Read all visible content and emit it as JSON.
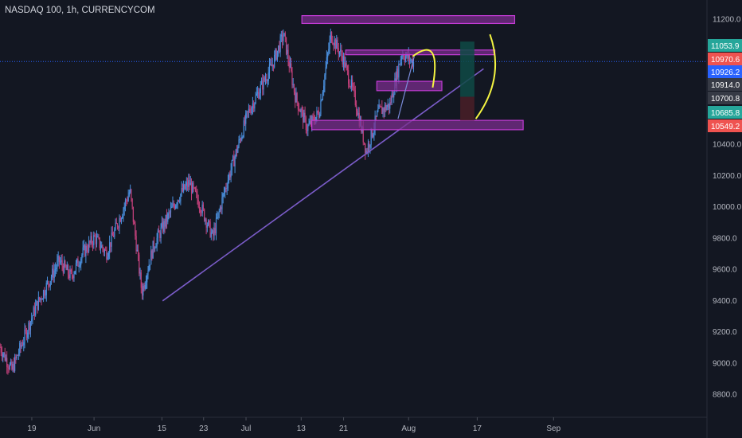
{
  "header": {
    "title": "NASDAQ 100, 1h, CURRENCYCOM"
  },
  "colors": {
    "background": "#131722",
    "up": "#4a8fdd",
    "down": "#c2407a",
    "zone_fill": "#7b2d8e",
    "zone_stroke": "#c23bd4",
    "trendline": "#7b5cc9",
    "arc": "#f5f542",
    "axis_text": "#b2b5be",
    "price_line": "#2962ff"
  },
  "chart_data": {
    "type": "candlestick",
    "title": "NASDAQ 100, 1h, CURRENCYCOM",
    "ylim": [
      8650,
      11320
    ],
    "y_ticks": [
      8800,
      9000,
      9200,
      9400,
      9600,
      9800,
      10000,
      10200,
      10400,
      11200
    ],
    "y_tick_labels": [
      "8800.0",
      "9000.0",
      "9200.0",
      "9400.0",
      "9600.0",
      "9800.0",
      "10000.0",
      "10200.0",
      "10400.0",
      "11200.0"
    ],
    "x_tick_labels": [
      "19",
      "Jun",
      "15",
      "23",
      "Jul",
      "13",
      "21",
      "Aug",
      "17",
      "Sep"
    ],
    "price_tags": [
      {
        "label": "11053.9",
        "color": "#26a69a"
      },
      {
        "label": "10970.6",
        "color": "#ef5350"
      },
      {
        "label": "10926.2",
        "color": "#2962ff"
      },
      {
        "label": "10914.0",
        "color": "#363a45"
      },
      {
        "label": "10700.8",
        "color": "#363a45"
      },
      {
        "label": "10685.8",
        "color": "#26a69a"
      },
      {
        "label": "10549.2",
        "color": "#ef5350"
      }
    ],
    "current_price": 10926.2,
    "path_points": [
      [
        9100,
        1.0
      ],
      [
        8950,
        1.0
      ],
      [
        9150,
        1.0
      ],
      [
        9350,
        1.0
      ],
      [
        9500,
        1.0
      ],
      [
        9650,
        1.0
      ],
      [
        9550,
        1.0
      ],
      [
        9700,
        1.0
      ],
      [
        9800,
        1.0
      ],
      [
        9700,
        1.0
      ],
      [
        9900,
        1.0
      ],
      [
        10100,
        1.0
      ],
      [
        9450,
        1.0
      ],
      [
        9750,
        1.0
      ],
      [
        9900,
        1.0
      ],
      [
        10050,
        1.0
      ],
      [
        10150,
        1.0
      ],
      [
        10000,
        1.0
      ],
      [
        9800,
        1.0
      ],
      [
        10100,
        1.0
      ],
      [
        10350,
        1.0
      ],
      [
        10600,
        1.0
      ],
      [
        10750,
        1.0
      ],
      [
        10900,
        1.0
      ],
      [
        11100,
        1.0
      ],
      [
        10700,
        1.0
      ],
      [
        10500,
        1.0
      ],
      [
        10600,
        1.0
      ],
      [
        11100,
        1.0
      ],
      [
        10950,
        1.0
      ],
      [
        10700,
        1.0
      ],
      [
        10350,
        1.0
      ],
      [
        10600,
        1.0
      ],
      [
        10650,
        1.0
      ],
      [
        10980,
        1.0
      ],
      [
        10920,
        1.0
      ]
    ],
    "zones": [
      {
        "name": "top-resistance-zone",
        "y_top": 11220,
        "y_bottom": 11170,
        "x_start": 0.427,
        "x_end": 0.728
      },
      {
        "name": "upper-mid-zone",
        "y_top": 11000,
        "y_bottom": 10970,
        "x_start": 0.489,
        "x_end": 0.7
      },
      {
        "name": "mid-zone",
        "y_top": 10800,
        "y_bottom": 10740,
        "x_start": 0.533,
        "x_end": 0.625
      },
      {
        "name": "support-zone",
        "y_top": 10550,
        "y_bottom": 10490,
        "x_start": 0.441,
        "x_end": 0.74
      }
    ],
    "trendline": {
      "y1": 9395,
      "y2": 10880,
      "x1": 0.23,
      "x2": 0.684
    },
    "position": {
      "entry": 10700.8,
      "target": 11053.9,
      "stop": 10549.2,
      "x_start": 0.651,
      "x_end": 0.671
    }
  }
}
